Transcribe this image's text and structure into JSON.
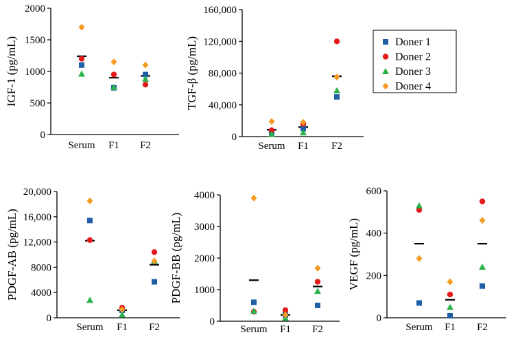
{
  "colors": {
    "doner1": "#1f5fa8",
    "doner2": "#e31b1b",
    "doner3": "#2bb24c",
    "doner4": "#f59a23",
    "mean": "#000000"
  },
  "legend": {
    "entries": [
      {
        "label": "Doner 1",
        "marker": "square",
        "color": "#1f5fa8"
      },
      {
        "label": "Doner 2",
        "marker": "circle",
        "color": "#e31b1b"
      },
      {
        "label": "Doner 3",
        "marker": "triangle",
        "color": "#2bb24c"
      },
      {
        "label": "Doner 4",
        "marker": "diamond",
        "color": "#f59a23"
      }
    ]
  },
  "chart_data": [
    {
      "type": "scatter",
      "id": "igf1",
      "ylabel": "IGF-1  (pg/mL)",
      "categories": [
        "Serum",
        "F1",
        "F2"
      ],
      "ylim": [
        0,
        2000
      ],
      "yticks": [
        0,
        500,
        1000,
        1500,
        2000
      ],
      "ytick_labels": [
        "0",
        "500",
        "1000",
        "1500",
        "2000"
      ],
      "series": [
        {
          "name": "Doner 1",
          "values": [
            1100,
            740,
            950
          ]
        },
        {
          "name": "Doner 2",
          "values": [
            1200,
            950,
            790
          ]
        },
        {
          "name": "Doner 3",
          "values": [
            960,
            750,
            880
          ]
        },
        {
          "name": "Doner 4",
          "values": [
            1700,
            1150,
            1100
          ]
        }
      ],
      "means": [
        1240,
        900,
        930
      ]
    },
    {
      "type": "scatter",
      "id": "tgfb",
      "ylabel": "TGF-β  (pg/mL)",
      "categories": [
        "Serum",
        "F1",
        "F2"
      ],
      "ylim": [
        0,
        160000
      ],
      "yticks": [
        0,
        40000,
        80000,
        120000,
        160000
      ],
      "ytick_labels": [
        "0",
        "40,000",
        "80,000",
        "120,000",
        "160,000"
      ],
      "series": [
        {
          "name": "Doner 1",
          "values": [
            5000,
            10000,
            50000
          ]
        },
        {
          "name": "Doner 2",
          "values": [
            8000,
            16000,
            120000
          ]
        },
        {
          "name": "Doner 3",
          "values": [
            3000,
            5000,
            58000
          ]
        },
        {
          "name": "Doner 4",
          "values": [
            19000,
            18000,
            75000
          ]
        }
      ],
      "means": [
        8500,
        12000,
        76000
      ]
    },
    {
      "type": "scatter",
      "id": "pdgfab",
      "ylabel": "PDGF-AB  (pg/mL)",
      "categories": [
        "Serum",
        "F1",
        "F2"
      ],
      "ylim": [
        0,
        20000
      ],
      "yticks": [
        0,
        4000,
        8000,
        12000,
        16000,
        20000
      ],
      "ytick_labels": [
        "0",
        "4000",
        "8000",
        "12,000",
        "16,000",
        "20,000"
      ],
      "series": [
        {
          "name": "Doner 1",
          "values": [
            15400,
            1200,
            5700
          ]
        },
        {
          "name": "Doner 2",
          "values": [
            12300,
            1600,
            10400
          ]
        },
        {
          "name": "Doner 3",
          "values": [
            2800,
            500,
            9000
          ]
        },
        {
          "name": "Doner 4",
          "values": [
            18500,
            1300,
            9000
          ]
        }
      ],
      "means": [
        12200,
        1200,
        8400
      ]
    },
    {
      "type": "scatter",
      "id": "pdgfbb",
      "ylabel": "PDGF-BB  (pg/mL)",
      "categories": [
        "Serum",
        "F1",
        "F2"
      ],
      "ylim": [
        0,
        4000
      ],
      "yticks": [
        0,
        1000,
        2000,
        3000,
        4000
      ],
      "ytick_labels": [
        "0",
        "1000",
        "2000",
        "3000",
        "4000"
      ],
      "series": [
        {
          "name": "Doner 1",
          "values": [
            600,
            200,
            500
          ]
        },
        {
          "name": "Doner 2",
          "values": [
            300,
            350,
            1250
          ]
        },
        {
          "name": "Doner 3",
          "values": [
            320,
            100,
            950
          ]
        },
        {
          "name": "Doner 4",
          "values": [
            3900,
            200,
            1680
          ]
        }
      ],
      "means": [
        1300,
        200,
        1100
      ]
    },
    {
      "type": "scatter",
      "id": "vegf",
      "ylabel": "VEGF  (pg/mL)",
      "categories": [
        "Serum",
        "F1",
        "F2"
      ],
      "ylim": [
        0,
        600
      ],
      "yticks": [
        0,
        200,
        400,
        600
      ],
      "ytick_labels": [
        "0",
        "200",
        "400",
        "600"
      ],
      "series": [
        {
          "name": "Doner 1",
          "values": [
            70,
            10,
            150
          ]
        },
        {
          "name": "Doner 2",
          "values": [
            510,
            110,
            550
          ]
        },
        {
          "name": "Doner 3",
          "values": [
            530,
            50,
            240
          ]
        },
        {
          "name": "Doner 4",
          "values": [
            280,
            170,
            460
          ]
        }
      ],
      "means": [
        350,
        85,
        350
      ]
    }
  ]
}
